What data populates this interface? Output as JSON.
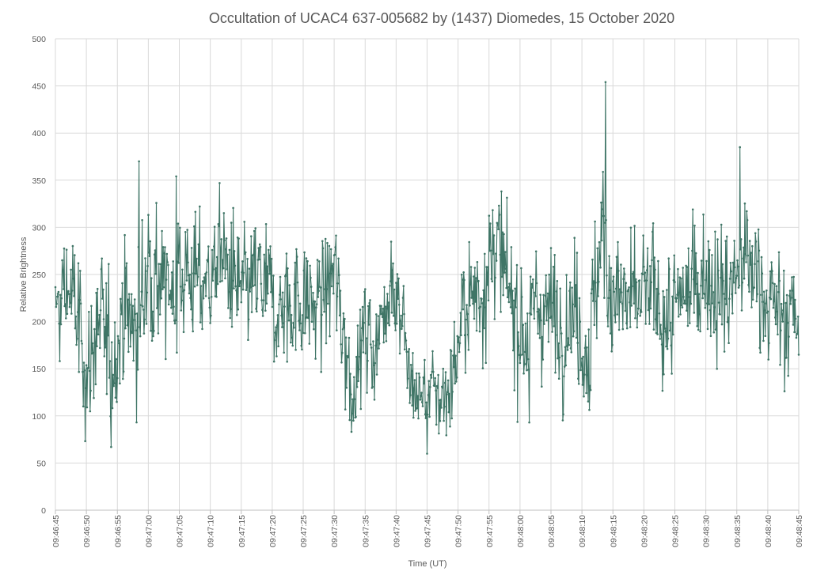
{
  "chart_data": {
    "type": "line",
    "title": "Occultation of UCAC4 637-005682 by (1437) Diomedes, 15 October 2020",
    "xlabel": "Time (UT)",
    "ylabel": "Relative Brightness",
    "ylim": [
      0,
      500
    ],
    "yticks": [
      0,
      50,
      100,
      150,
      200,
      250,
      300,
      350,
      400,
      450,
      500
    ],
    "xlim_seconds_after_first_tick": [
      0,
      120
    ],
    "xtick_labels": [
      "09:46:45",
      "09:46:50",
      "09:46:55",
      "09:47:00",
      "09:47:05",
      "09:47:10",
      "09:47:15",
      "09:47:20",
      "09:47:25",
      "09:47:30",
      "09:47:35",
      "09:47:40",
      "09:47:45",
      "09:47:50",
      "09:47:55",
      "09:48:00",
      "09:48:05",
      "09:48:10",
      "09:48:15",
      "09:48:20",
      "09:48:25",
      "09:48:30",
      "09:48:35",
      "09:48:40",
      "09:48:45"
    ],
    "grid": true,
    "series": [
      {
        "color": "#3f7566",
        "x_start": "09:46:45",
        "samples_per_second": 10,
        "sample_count": 1201,
        "envelope": [
          {
            "t": "09:46:45",
            "mean": 200,
            "spread": 55
          },
          {
            "t": "09:46:47",
            "mean": 240,
            "spread": 60
          },
          {
            "t": "09:46:49",
            "mean": 190,
            "spread": 60
          },
          {
            "t": "09:46:50",
            "mean": 140,
            "spread": 55
          },
          {
            "t": "09:46:52",
            "mean": 200,
            "spread": 50
          },
          {
            "t": "09:46:54",
            "mean": 160,
            "spread": 60
          },
          {
            "t": "09:46:56",
            "mean": 210,
            "spread": 55
          },
          {
            "t": "09:46:58",
            "mean": 190,
            "spread": 60
          },
          {
            "t": "09:47:00",
            "mean": 260,
            "spread": 60
          },
          {
            "t": "09:47:03",
            "mean": 230,
            "spread": 55
          },
          {
            "t": "09:47:06",
            "mean": 255,
            "spread": 55
          },
          {
            "t": "09:47:09",
            "mean": 240,
            "spread": 55
          },
          {
            "t": "09:47:12",
            "mean": 265,
            "spread": 50
          },
          {
            "t": "09:47:15",
            "mean": 225,
            "spread": 50
          },
          {
            "t": "09:47:18",
            "mean": 240,
            "spread": 55
          },
          {
            "t": "09:47:21",
            "mean": 210,
            "spread": 50
          },
          {
            "t": "09:47:24",
            "mean": 225,
            "spread": 50
          },
          {
            "t": "09:47:27",
            "mean": 215,
            "spread": 50
          },
          {
            "t": "09:47:30",
            "mean": 250,
            "spread": 55
          },
          {
            "t": "09:47:32",
            "mean": 170,
            "spread": 50
          },
          {
            "t": "09:47:33",
            "mean": 130,
            "spread": 45
          },
          {
            "t": "09:47:35",
            "mean": 190,
            "spread": 50
          },
          {
            "t": "09:47:37",
            "mean": 170,
            "spread": 50
          },
          {
            "t": "09:47:39",
            "mean": 255,
            "spread": 50
          },
          {
            "t": "09:47:41",
            "mean": 210,
            "spread": 45
          },
          {
            "t": "09:47:42",
            "mean": 135,
            "spread": 35
          },
          {
            "t": "09:47:44",
            "mean": 120,
            "spread": 35
          },
          {
            "t": "09:47:46",
            "mean": 125,
            "spread": 35
          },
          {
            "t": "09:47:48",
            "mean": 120,
            "spread": 35
          },
          {
            "t": "09:47:49",
            "mean": 140,
            "spread": 40
          },
          {
            "t": "09:47:51",
            "mean": 215,
            "spread": 50
          },
          {
            "t": "09:47:54",
            "mean": 240,
            "spread": 55
          },
          {
            "t": "09:47:56",
            "mean": 285,
            "spread": 55
          },
          {
            "t": "09:47:58",
            "mean": 230,
            "spread": 55
          },
          {
            "t": "09:48:01",
            "mean": 185,
            "spread": 55
          },
          {
            "t": "09:48:03",
            "mean": 220,
            "spread": 55
          },
          {
            "t": "09:48:06",
            "mean": 200,
            "spread": 55
          },
          {
            "t": "09:48:09",
            "mean": 215,
            "spread": 55
          },
          {
            "t": "09:48:11",
            "mean": 160,
            "spread": 50
          },
          {
            "t": "09:48:13",
            "mean": 290,
            "spread": 70
          },
          {
            "t": "09:48:15",
            "mean": 230,
            "spread": 60
          },
          {
            "t": "09:48:18",
            "mean": 215,
            "spread": 55
          },
          {
            "t": "09:48:21",
            "mean": 230,
            "spread": 55
          },
          {
            "t": "09:48:24",
            "mean": 200,
            "spread": 55
          },
          {
            "t": "09:48:27",
            "mean": 230,
            "spread": 55
          },
          {
            "t": "09:48:30",
            "mean": 255,
            "spread": 55
          },
          {
            "t": "09:48:33",
            "mean": 225,
            "spread": 55
          },
          {
            "t": "09:48:36",
            "mean": 265,
            "spread": 60
          },
          {
            "t": "09:48:39",
            "mean": 240,
            "spread": 55
          },
          {
            "t": "09:48:42",
            "mean": 200,
            "spread": 55
          },
          {
            "t": "09:48:45",
            "mean": 210,
            "spread": 55
          }
        ],
        "marked_peaks": [
          {
            "t": "09:46:54",
            "y": 67
          },
          {
            "t": "09:46:58.5",
            "y": 370
          },
          {
            "t": "09:47:04.5",
            "y": 354
          },
          {
            "t": "09:47:11.5",
            "y": 347
          },
          {
            "t": "09:47:45",
            "y": 60
          },
          {
            "t": "09:48:01.5",
            "y": 93
          },
          {
            "t": "09:48:13.8",
            "y": 454
          },
          {
            "t": "09:48:35.5",
            "y": 385
          }
        ]
      }
    ]
  }
}
